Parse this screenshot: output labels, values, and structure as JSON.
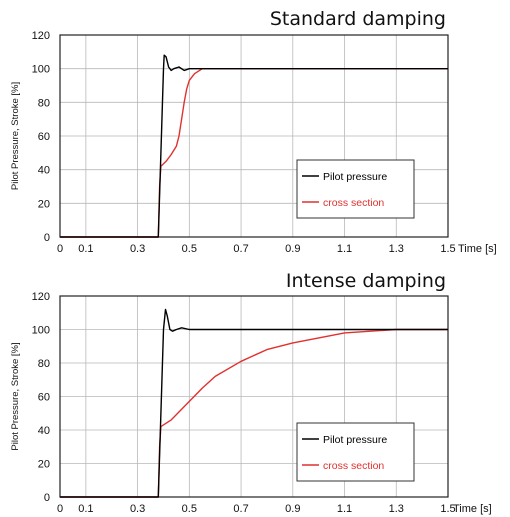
{
  "colors": {
    "pilot": "#000000",
    "cross": "#e0312f",
    "grid": "#b8b8b8",
    "frame": "#222222"
  },
  "chart_data": [
    {
      "type": "line",
      "title": "Standard damping",
      "xlabel": "Time [s]",
      "ylabel": "Pilot Pressure, Stroke [%]",
      "xlim": [
        0,
        1.5
      ],
      "ylim": [
        0,
        120
      ],
      "xtick_labels": [
        "0",
        "0.1",
        "0.3",
        "0.5",
        "0.7",
        "0.9",
        "1.1",
        "1.3",
        "1.5"
      ],
      "ytick_labels": [
        "0",
        "20",
        "40",
        "60",
        "80",
        "100",
        "120"
      ],
      "grid": true,
      "legend": "lower-right",
      "series": [
        {
          "name": "Pilot pressure",
          "color": "#000000",
          "points": [
            [
              0,
              0
            ],
            [
              0.38,
              0
            ],
            [
              0.4,
              100
            ],
            [
              0.403,
              108
            ],
            [
              0.41,
              107
            ],
            [
              0.42,
              101
            ],
            [
              0.43,
              99
            ],
            [
              0.44,
              100
            ],
            [
              0.46,
              101
            ],
            [
              0.48,
              99
            ],
            [
              0.5,
              100
            ],
            [
              0.55,
              100
            ],
            [
              0.7,
              100
            ],
            [
              0.9,
              100
            ],
            [
              1.1,
              100
            ],
            [
              1.3,
              100
            ],
            [
              1.5,
              100
            ]
          ]
        },
        {
          "name": "cross section",
          "color": "#e0312f",
          "points": [
            [
              0,
              0
            ],
            [
              0.38,
              0
            ],
            [
              0.385,
              30
            ],
            [
              0.39,
              42
            ],
            [
              0.41,
              45
            ],
            [
              0.43,
              49
            ],
            [
              0.45,
              54
            ],
            [
              0.46,
              60
            ],
            [
              0.47,
              70
            ],
            [
              0.48,
              80
            ],
            [
              0.49,
              88
            ],
            [
              0.5,
              93
            ],
            [
              0.52,
              97
            ],
            [
              0.55,
              100
            ],
            [
              0.7,
              100
            ],
            [
              0.9,
              100
            ],
            [
              1.1,
              100
            ],
            [
              1.3,
              100
            ],
            [
              1.5,
              100
            ]
          ]
        }
      ]
    },
    {
      "type": "line",
      "title": "Intense damping",
      "xlabel": "Time [s]",
      "ylabel": "Pilot Pressure, Stroke [%]",
      "xlim": [
        0,
        1.5
      ],
      "ylim": [
        0,
        120
      ],
      "xtick_labels": [
        "0",
        "0.1",
        "0.3",
        "0.5",
        "0.7",
        "0.9",
        "1.1",
        "1.3",
        "1.5"
      ],
      "ytick_labels": [
        "0",
        "20",
        "40",
        "60",
        "80",
        "100",
        "120"
      ],
      "grid": true,
      "legend": "lower-right",
      "series": [
        {
          "name": "Pilot pressure",
          "color": "#000000",
          "points": [
            [
              0,
              0
            ],
            [
              0.38,
              0
            ],
            [
              0.4,
              100
            ],
            [
              0.408,
              112
            ],
            [
              0.415,
              108
            ],
            [
              0.425,
              100
            ],
            [
              0.435,
              99
            ],
            [
              0.45,
              100
            ],
            [
              0.47,
              101
            ],
            [
              0.5,
              100
            ],
            [
              0.7,
              100
            ],
            [
              0.9,
              100
            ],
            [
              1.1,
              100
            ],
            [
              1.3,
              100
            ],
            [
              1.5,
              100
            ]
          ]
        },
        {
          "name": "cross section",
          "color": "#e0312f",
          "points": [
            [
              0,
              0
            ],
            [
              0.38,
              0
            ],
            [
              0.385,
              30
            ],
            [
              0.39,
              42
            ],
            [
              0.43,
              46
            ],
            [
              0.48,
              54
            ],
            [
              0.55,
              65
            ],
            [
              0.6,
              72
            ],
            [
              0.7,
              81
            ],
            [
              0.8,
              88
            ],
            [
              0.9,
              92
            ],
            [
              1.0,
              95
            ],
            [
              1.1,
              98
            ],
            [
              1.2,
              99
            ],
            [
              1.3,
              100
            ],
            [
              1.5,
              100
            ]
          ]
        }
      ]
    }
  ]
}
